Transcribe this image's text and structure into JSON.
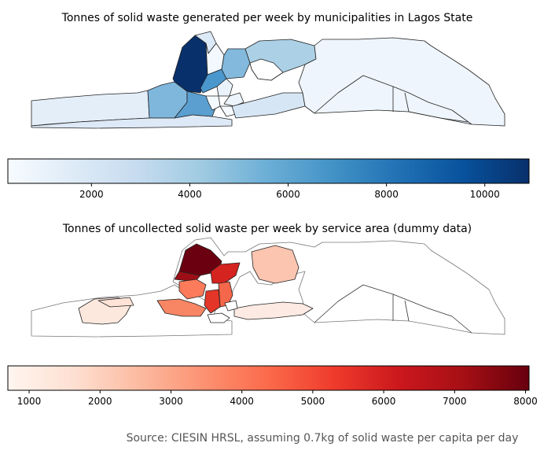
{
  "top_map": {
    "title": "Tonnes of solid waste generated per week by municipalities in Lagos State",
    "colormap": [
      "#f7fbff",
      "#deebf7",
      "#c6dbef",
      "#9ecae1",
      "#6baed6",
      "#4292c6",
      "#2171b5",
      "#08519c",
      "#08306b"
    ],
    "colorbar": {
      "min": 300,
      "max": 10900,
      "ticks": [
        2000,
        4000,
        6000,
        8000,
        10000
      ]
    }
  },
  "bottom_map": {
    "title": "Tonnes of uncollected solid waste per week by service area (dummy data)",
    "colormap": [
      "#fff5f0",
      "#fee0d2",
      "#fcbba1",
      "#fc9272",
      "#fb6a4a",
      "#ef3b2c",
      "#cb181d",
      "#a50f15",
      "#67000d"
    ],
    "colorbar": {
      "min": 700,
      "max": 8050,
      "ticks": [
        1000,
        2000,
        3000,
        4000,
        5000,
        6000,
        7000,
        8000
      ]
    }
  },
  "source_note": "Source: CIESIN HRSL, assuming 0.7kg of solid waste per capita per day"
}
